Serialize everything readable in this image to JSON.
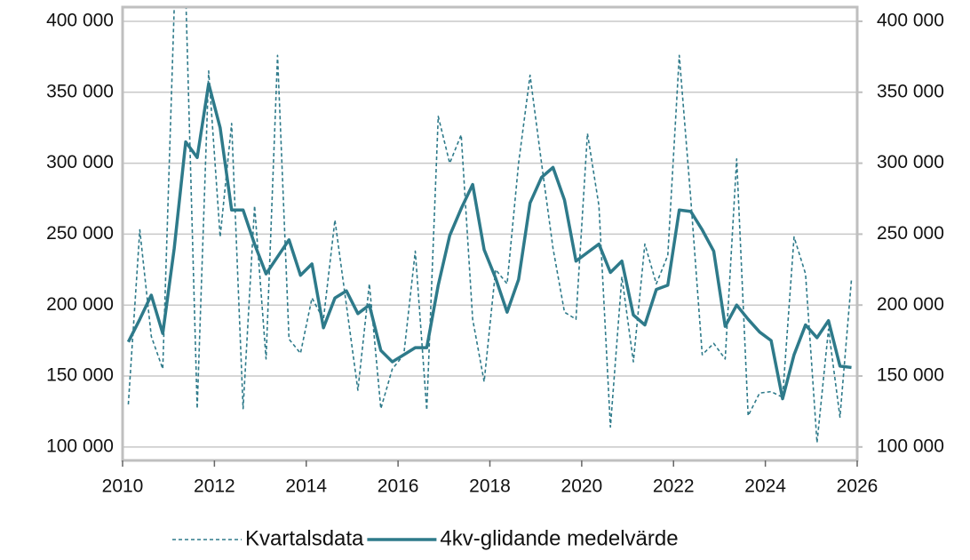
{
  "chart_data": {
    "type": "line",
    "x": [
      2010.125,
      2010.375,
      2010.625,
      2010.875,
      2011.125,
      2011.375,
      2011.625,
      2011.875,
      2012.125,
      2012.375,
      2012.625,
      2012.875,
      2013.125,
      2013.375,
      2013.625,
      2013.875,
      2014.125,
      2014.375,
      2014.625,
      2014.875,
      2015.125,
      2015.375,
      2015.625,
      2015.875,
      2016.125,
      2016.375,
      2016.625,
      2016.875,
      2017.125,
      2017.375,
      2017.625,
      2017.875,
      2018.125,
      2018.375,
      2018.625,
      2018.875,
      2019.125,
      2019.375,
      2019.625,
      2019.875,
      2020.125,
      2020.375,
      2020.625,
      2020.875,
      2021.125,
      2021.375,
      2021.625,
      2021.875,
      2022.125,
      2022.375,
      2022.625,
      2022.875,
      2023.125,
      2023.375,
      2023.625,
      2023.875,
      2024.125,
      2024.375,
      2024.625,
      2024.875,
      2025.125,
      2025.375,
      2025.625,
      2025.875
    ],
    "series": [
      {
        "name": "Kvartalsdata",
        "color": "#2e7a8a",
        "dash": true,
        "values": [
          130000,
          253000,
          178000,
          155000,
          410000,
          420000,
          127000,
          365000,
          248000,
          328000,
          127000,
          270000,
          162000,
          376000,
          176000,
          166000,
          205000,
          190000,
          260000,
          200000,
          140000,
          215000,
          127000,
          155000,
          165000,
          238000,
          126000,
          333000,
          300000,
          320000,
          190000,
          146000,
          225000,
          215000,
          300000,
          362000,
          300000,
          240000,
          195000,
          190000,
          321000,
          270000,
          114000,
          220000,
          160000,
          243000,
          215000,
          235000,
          376000,
          275000,
          165000,
          173000,
          162000,
          303000,
          122000,
          138000,
          139000,
          135000,
          248000,
          222000,
          103000,
          183000,
          121000,
          218000
        ]
      },
      {
        "name": "4kv-glidande medelvärde",
        "color": "#2e7a8a",
        "dash": false,
        "values": [
          174000,
          190000,
          207000,
          180000,
          240000,
          315000,
          304000,
          356000,
          325000,
          267000,
          267000,
          243000,
          222000,
          234000,
          246000,
          221000,
          229000,
          184000,
          205000,
          210000,
          194000,
          200000,
          168000,
          160000,
          165000,
          170000,
          170000,
          214000,
          249000,
          268000,
          285000,
          239000,
          219000,
          195000,
          218000,
          272000,
          290000,
          297000,
          274000,
          231000,
          237000,
          243000,
          223000,
          231000,
          193000,
          186000,
          211000,
          214000,
          267000,
          266000,
          253000,
          238000,
          185000,
          200000,
          190000,
          181000,
          175000,
          134000,
          165000,
          186000,
          177000,
          189000,
          157000,
          156000
        ]
      }
    ],
    "xlim": [
      2010,
      2026
    ],
    "xticks": [
      2010,
      2012,
      2014,
      2016,
      2018,
      2020,
      2022,
      2024,
      2026
    ],
    "ylim": [
      90500,
      410000
    ],
    "yticks": [
      {
        "value": 100000,
        "label": "100 000"
      },
      {
        "value": 150000,
        "label": "150 000"
      },
      {
        "value": 200000,
        "label": "200 000"
      },
      {
        "value": 250000,
        "label": "250 000"
      },
      {
        "value": 300000,
        "label": "300 000"
      },
      {
        "value": 350000,
        "label": "350 000"
      },
      {
        "value": 400000,
        "label": "400 000"
      }
    ],
    "y2lim": [
      90500,
      410000
    ],
    "y2ticks": [
      {
        "value": 100000,
        "label": "100 000"
      },
      {
        "value": 150000,
        "label": "150 000"
      },
      {
        "value": 200000,
        "label": "200 000"
      },
      {
        "value": 250000,
        "label": "250 000"
      },
      {
        "value": 300000,
        "label": "300 000"
      },
      {
        "value": 350000,
        "label": "350 000"
      },
      {
        "value": 400000,
        "label": "400 000"
      }
    ],
    "grid": true,
    "legend": "bottom"
  }
}
